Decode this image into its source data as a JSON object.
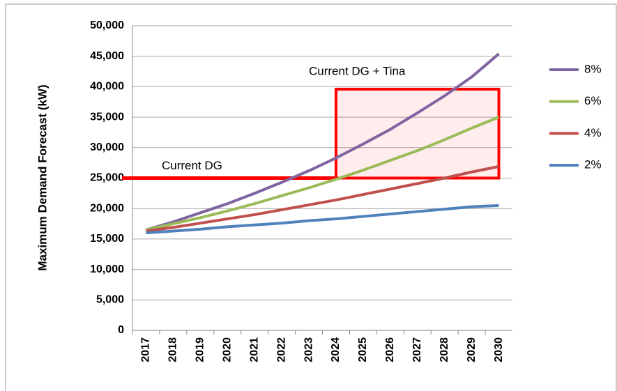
{
  "chart_data": {
    "type": "line",
    "y_label": "Maximum Demand Forecast (kW)",
    "categories": [
      "2017",
      "2018",
      "2019",
      "2020",
      "2021",
      "2022",
      "2023",
      "2024",
      "2025",
      "2026",
      "2027",
      "2028",
      "2029",
      "2030"
    ],
    "series": [
      {
        "name": "8%",
        "color": "#8064a2",
        "values": [
          16500,
          17800,
          19300,
          20800,
          22500,
          24300,
          26200,
          28300,
          30600,
          33000,
          35700,
          38500,
          41600,
          45400
        ]
      },
      {
        "name": "6%",
        "color": "#9bbb59",
        "values": [
          16500,
          17500,
          18500,
          19600,
          20800,
          22100,
          23400,
          24800,
          26300,
          27900,
          29500,
          31300,
          33200,
          35000
        ]
      },
      {
        "name": "4%",
        "color": "#c0504d",
        "values": [
          16300,
          16900,
          17600,
          18300,
          19000,
          19800,
          20600,
          21400,
          22300,
          23200,
          24100,
          25000,
          26000,
          26900
        ]
      },
      {
        "name": "2%",
        "color": "#4f81bd",
        "values": [
          16000,
          16300,
          16600,
          17000,
          17300,
          17600,
          18000,
          18300,
          18700,
          19100,
          19500,
          19900,
          20300,
          20500
        ]
      }
    ],
    "ylim": [
      0,
      50000
    ],
    "yticks": [
      0,
      {
        "value": 5000,
        "label": "5,000"
      },
      {
        "value": 10000,
        "label": "10,000"
      },
      {
        "value": 15000,
        "label": "15,000"
      },
      {
        "value": 20000,
        "label": "20,000"
      },
      {
        "value": 25000,
        "label": "25,000"
      },
      {
        "value": 30000,
        "label": "30,000"
      },
      {
        "value": 35000,
        "label": "35,000"
      },
      {
        "value": 40000,
        "label": "40,000"
      },
      {
        "value": 45000,
        "label": "45,000"
      },
      {
        "value": 50000,
        "label": "50,000"
      }
    ],
    "grid": true,
    "legend": "right",
    "reference_line": {
      "value": 25000,
      "label": "Current DG",
      "color": "#ff0000"
    },
    "box": {
      "x_from": "2024",
      "x_to": "2030",
      "y_from": 25000,
      "y_to": 39600,
      "label": "Current DG + Tina",
      "color": "#ff0000"
    }
  }
}
